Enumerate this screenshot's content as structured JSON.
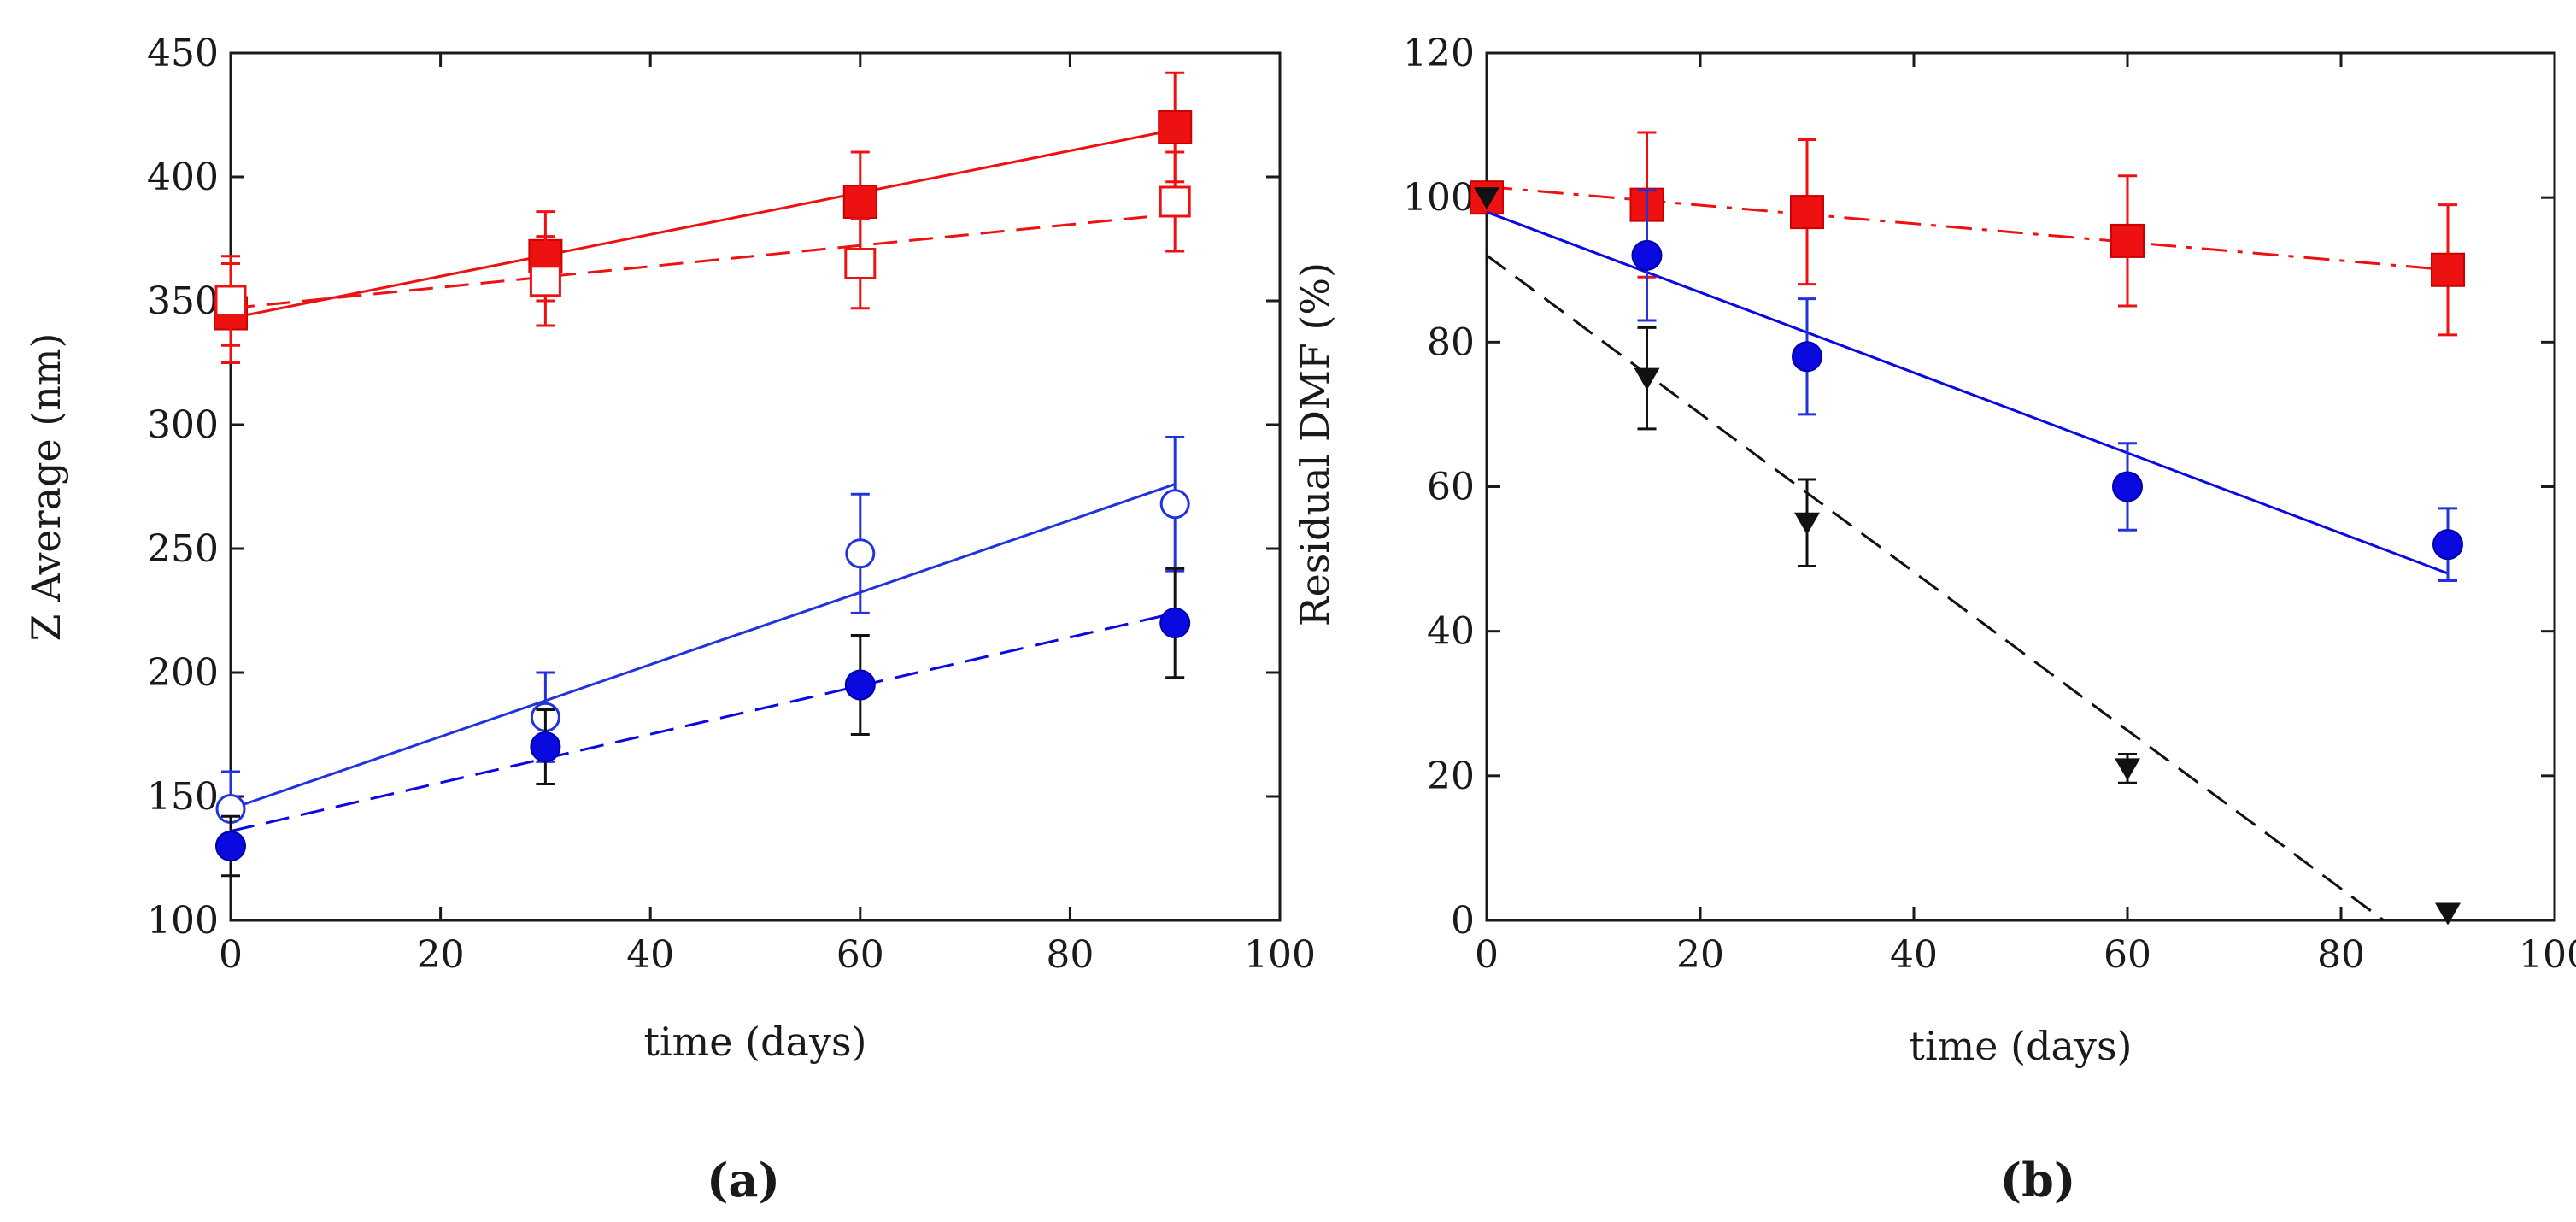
{
  "chart_data": [
    {
      "type": "scatter",
      "panel_label": "(a)",
      "xlabel": "time (days)",
      "ylabel": "Z Average (nm)",
      "xlim": [
        0,
        100
      ],
      "ylim": [
        100,
        450
      ],
      "xticks": [
        0,
        20,
        40,
        60,
        80,
        100
      ],
      "yticks": [
        100,
        150,
        200,
        250,
        300,
        350,
        400,
        450
      ],
      "grid": false,
      "series": [
        {
          "name": "red filled squares",
          "marker": "square-filled",
          "color": "#ee1111",
          "line": "solid",
          "x": [
            0,
            30,
            60,
            90
          ],
          "y": [
            345,
            368,
            390,
            420
          ],
          "err": [
            20,
            18,
            20,
            22
          ],
          "errcolor": "#ee1111",
          "fit": [
            [
              0,
              343
            ],
            [
              90,
              419
            ]
          ]
        },
        {
          "name": "red open squares",
          "marker": "square-open",
          "color": "#ee1111",
          "line": "dashed",
          "x": [
            0,
            30,
            60,
            90
          ],
          "y": [
            350,
            358,
            365,
            390
          ],
          "err": [
            18,
            18,
            18,
            20
          ],
          "errcolor": "#ee1111",
          "fit": [
            [
              0,
              347
            ],
            [
              90,
              385
            ]
          ]
        },
        {
          "name": "blue open circles",
          "marker": "circle-open",
          "color": "#2233dd",
          "line": "solid",
          "x": [
            0,
            30,
            60,
            90
          ],
          "y": [
            145,
            182,
            248,
            268
          ],
          "err": [
            15,
            18,
            24,
            27
          ],
          "errcolor": "#2233dd",
          "fit": [
            [
              0,
              145
            ],
            [
              90,
              276
            ]
          ]
        },
        {
          "name": "blue filled circles",
          "marker": "circle-filled",
          "color": "#0a0ae0",
          "line": "dashed",
          "x": [
            0,
            30,
            60,
            90
          ],
          "y": [
            130,
            170,
            195,
            220
          ],
          "err": [
            12,
            15,
            20,
            22
          ],
          "errcolor": "#111111",
          "fit": [
            [
              0,
              136
            ],
            [
              90,
              224
            ]
          ]
        }
      ]
    },
    {
      "type": "scatter",
      "panel_label": "(b)",
      "xlabel": "time (days)",
      "ylabel": "Residual DMF (%)",
      "xlim": [
        0,
        100
      ],
      "ylim": [
        0,
        120
      ],
      "xticks": [
        0,
        20,
        40,
        60,
        80,
        100
      ],
      "yticks": [
        0,
        20,
        40,
        60,
        80,
        100,
        120
      ],
      "grid": false,
      "series": [
        {
          "name": "red squares",
          "marker": "square-filled",
          "color": "#ee1111",
          "line": "dashdot",
          "x": [
            0,
            15,
            30,
            60,
            90
          ],
          "y": [
            100,
            99,
            98,
            94,
            90
          ],
          "err": [
            0,
            10,
            10,
            9,
            9
          ],
          "errcolor": "#ee1111",
          "fit": [
            [
              0,
              101.5
            ],
            [
              90,
              90
            ]
          ]
        },
        {
          "name": "blue circles",
          "marker": "circle-filled",
          "color": "#0a0ae0",
          "line": "solid",
          "x": [
            15,
            30,
            60,
            90
          ],
          "y": [
            92,
            78,
            60,
            52
          ],
          "err": [
            9,
            8,
            6,
            5
          ],
          "errcolor": "#2233dd",
          "fit": [
            [
              0,
              98
            ],
            [
              90,
              48
            ]
          ]
        },
        {
          "name": "black triangles",
          "marker": "triangle-down",
          "color": "#111111",
          "line": "dashed",
          "x": [
            0,
            15,
            30,
            60,
            90
          ],
          "y": [
            100,
            75,
            55,
            21,
            1
          ],
          "err": [
            0,
            7,
            6,
            2,
            0
          ],
          "errcolor": "#111111",
          "fit": [
            [
              0,
              92
            ],
            [
              84,
              0
            ]
          ]
        }
      ]
    }
  ]
}
